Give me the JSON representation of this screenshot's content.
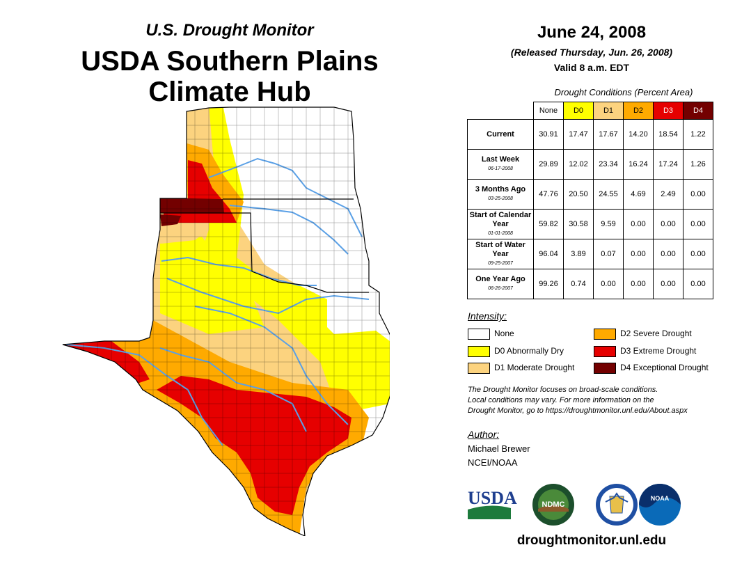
{
  "header": {
    "monitor_title": "U.S. Drought Monitor",
    "hub_title_line1": "USDA Southern Plains",
    "hub_title_line2": "Climate Hub"
  },
  "date_block": {
    "date": "June 24, 2008",
    "released": "(Released Thursday, Jun. 26, 2008)",
    "valid": "Valid 8 a.m. EDT"
  },
  "conditions": {
    "title": "Drought Conditions (Percent Area)",
    "columns": [
      "None",
      "D0",
      "D1",
      "D2",
      "D3",
      "D4"
    ],
    "column_colors": [
      "#ffffff",
      "#ffff00",
      "#fcd37f",
      "#ffaa00",
      "#e60000",
      "#730000"
    ],
    "rows": [
      {
        "label": "Current",
        "date": "",
        "values": [
          "30.91",
          "17.47",
          "17.67",
          "14.20",
          "18.54",
          "1.22"
        ]
      },
      {
        "label": "Last Week",
        "date": "06-17-2008",
        "values": [
          "29.89",
          "12.02",
          "23.34",
          "16.24",
          "17.24",
          "1.26"
        ]
      },
      {
        "label": "3 Months Ago",
        "date": "03-25-2008",
        "values": [
          "47.76",
          "20.50",
          "24.55",
          "4.69",
          "2.49",
          "0.00"
        ]
      },
      {
        "label": "Start of Calendar Year",
        "date": "01-01-2008",
        "values": [
          "59.82",
          "30.58",
          "9.59",
          "0.00",
          "0.00",
          "0.00"
        ]
      },
      {
        "label": "Start of Water Year",
        "date": "09-25-2007",
        "values": [
          "96.04",
          "3.89",
          "0.07",
          "0.00",
          "0.00",
          "0.00"
        ]
      },
      {
        "label": "One Year Ago",
        "date": "06-26-2007",
        "values": [
          "99.26",
          "0.74",
          "0.00",
          "0.00",
          "0.00",
          "0.00"
        ]
      }
    ]
  },
  "legend": {
    "title": "Intensity:",
    "items": [
      {
        "label": "None",
        "color": "#ffffff"
      },
      {
        "label": "D0 Abnormally Dry",
        "color": "#ffff00"
      },
      {
        "label": "D1 Moderate Drought",
        "color": "#fcd37f"
      },
      {
        "label": "D2 Severe Drought",
        "color": "#ffaa00"
      },
      {
        "label": "D3 Extreme Drought",
        "color": "#e60000"
      },
      {
        "label": "D4 Exceptional Drought",
        "color": "#730000"
      }
    ]
  },
  "note": {
    "line1": "The Drought Monitor focuses on broad-scale conditions.",
    "line2": "Local conditions may vary. For more information on the",
    "line3": "Drought Monitor, go to https://droughtmonitor.unl.edu/About.aspx"
  },
  "author": {
    "title": "Author:",
    "name": "Michael Brewer",
    "org": "NCEI/NOAA"
  },
  "logos": {
    "usda": "USDA",
    "ndmc": "NDMC",
    "noaa": "NOAA"
  },
  "footer": {
    "url": "droughtmonitor.unl.edu"
  }
}
